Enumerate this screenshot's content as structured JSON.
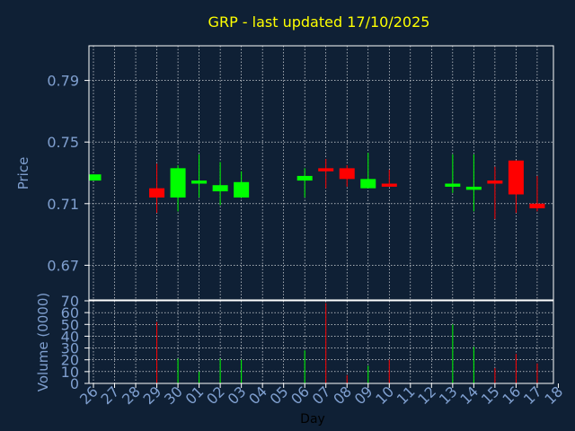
{
  "colors": {
    "background": "#0f2035",
    "frame": "#ffffff",
    "grid": "#ffffff",
    "title": "#ffff00",
    "axis_text": "#7f9fcf",
    "xlabel_text": "#000000",
    "up": "#00ff00",
    "down": "#ff0000"
  },
  "chart_data": [
    {
      "type": "candlestick",
      "title": "GRP - last updated 17/10/2025",
      "ylabel": "Price",
      "ylim": [
        0.6475,
        0.8125
      ],
      "yticks": [
        0.67,
        0.71,
        0.75,
        0.79
      ],
      "ytick_labels": [
        "0.67",
        "0.71",
        "0.75",
        "0.79"
      ],
      "grid": true,
      "candles": [
        {
          "day": "26",
          "open": 0.725,
          "close": 0.729,
          "high": 0.729,
          "low": 0.725
        },
        {
          "day": "29",
          "open": 0.72,
          "close": 0.714,
          "high": 0.736,
          "low": 0.704
        },
        {
          "day": "30",
          "open": 0.714,
          "close": 0.733,
          "high": 0.735,
          "low": 0.705
        },
        {
          "day": "01",
          "open": 0.723,
          "close": 0.725,
          "high": 0.742,
          "low": 0.714
        },
        {
          "day": "02",
          "open": 0.718,
          "close": 0.722,
          "high": 0.737,
          "low": 0.709
        },
        {
          "day": "03",
          "open": 0.714,
          "close": 0.724,
          "high": 0.731,
          "low": 0.714
        },
        {
          "day": "06",
          "open": 0.725,
          "close": 0.728,
          "high": 0.733,
          "low": 0.714
        },
        {
          "day": "07",
          "open": 0.733,
          "close": 0.731,
          "high": 0.739,
          "low": 0.72
        },
        {
          "day": "08",
          "open": 0.733,
          "close": 0.726,
          "high": 0.735,
          "low": 0.721
        },
        {
          "day": "09",
          "open": 0.72,
          "close": 0.726,
          "high": 0.743,
          "low": 0.72
        },
        {
          "day": "10",
          "open": 0.723,
          "close": 0.721,
          "high": 0.732,
          "low": 0.721
        },
        {
          "day": "13",
          "open": 0.721,
          "close": 0.723,
          "high": 0.742,
          "low": 0.717
        },
        {
          "day": "14",
          "open": 0.719,
          "close": 0.721,
          "high": 0.742,
          "low": 0.705
        },
        {
          "day": "15",
          "open": 0.725,
          "close": 0.723,
          "high": 0.734,
          "low": 0.7
        },
        {
          "day": "16",
          "open": 0.738,
          "close": 0.716,
          "high": 0.738,
          "low": 0.704
        },
        {
          "day": "17",
          "open": 0.71,
          "close": 0.707,
          "high": 0.728,
          "low": 0.705
        }
      ]
    },
    {
      "type": "bar",
      "ylabel": "Volume (0000)",
      "xlabel": "Day",
      "ylim": [
        0,
        70
      ],
      "yticks": [
        0,
        10,
        20,
        30,
        40,
        50,
        60,
        70
      ],
      "ytick_labels": [
        "0",
        "10",
        "20",
        "30",
        "40",
        "50",
        "60",
        "70"
      ],
      "x_categories": [
        "26",
        "27",
        "28",
        "29",
        "30",
        "01",
        "02",
        "03",
        "04",
        "05",
        "06",
        "07",
        "08",
        "09",
        "10",
        "11",
        "12",
        "13",
        "14",
        "15",
        "16",
        "17",
        "18"
      ],
      "grid": true,
      "volumes": [
        {
          "day": "29",
          "value": 52,
          "direction": "down"
        },
        {
          "day": "30",
          "value": 21,
          "direction": "up"
        },
        {
          "day": "01",
          "value": 10,
          "direction": "up"
        },
        {
          "day": "02",
          "value": 21,
          "direction": "up"
        },
        {
          "day": "03",
          "value": 20,
          "direction": "up"
        },
        {
          "day": "06",
          "value": 28,
          "direction": "up"
        },
        {
          "day": "07",
          "value": 68,
          "direction": "down"
        },
        {
          "day": "08",
          "value": 7,
          "direction": "down"
        },
        {
          "day": "09",
          "value": 15,
          "direction": "up"
        },
        {
          "day": "10",
          "value": 20,
          "direction": "down"
        },
        {
          "day": "13",
          "value": 50,
          "direction": "up"
        },
        {
          "day": "14",
          "value": 31,
          "direction": "up"
        },
        {
          "day": "15",
          "value": 13,
          "direction": "down"
        },
        {
          "day": "16",
          "value": 25,
          "direction": "down"
        },
        {
          "day": "17",
          "value": 17,
          "direction": "down"
        }
      ]
    }
  ]
}
